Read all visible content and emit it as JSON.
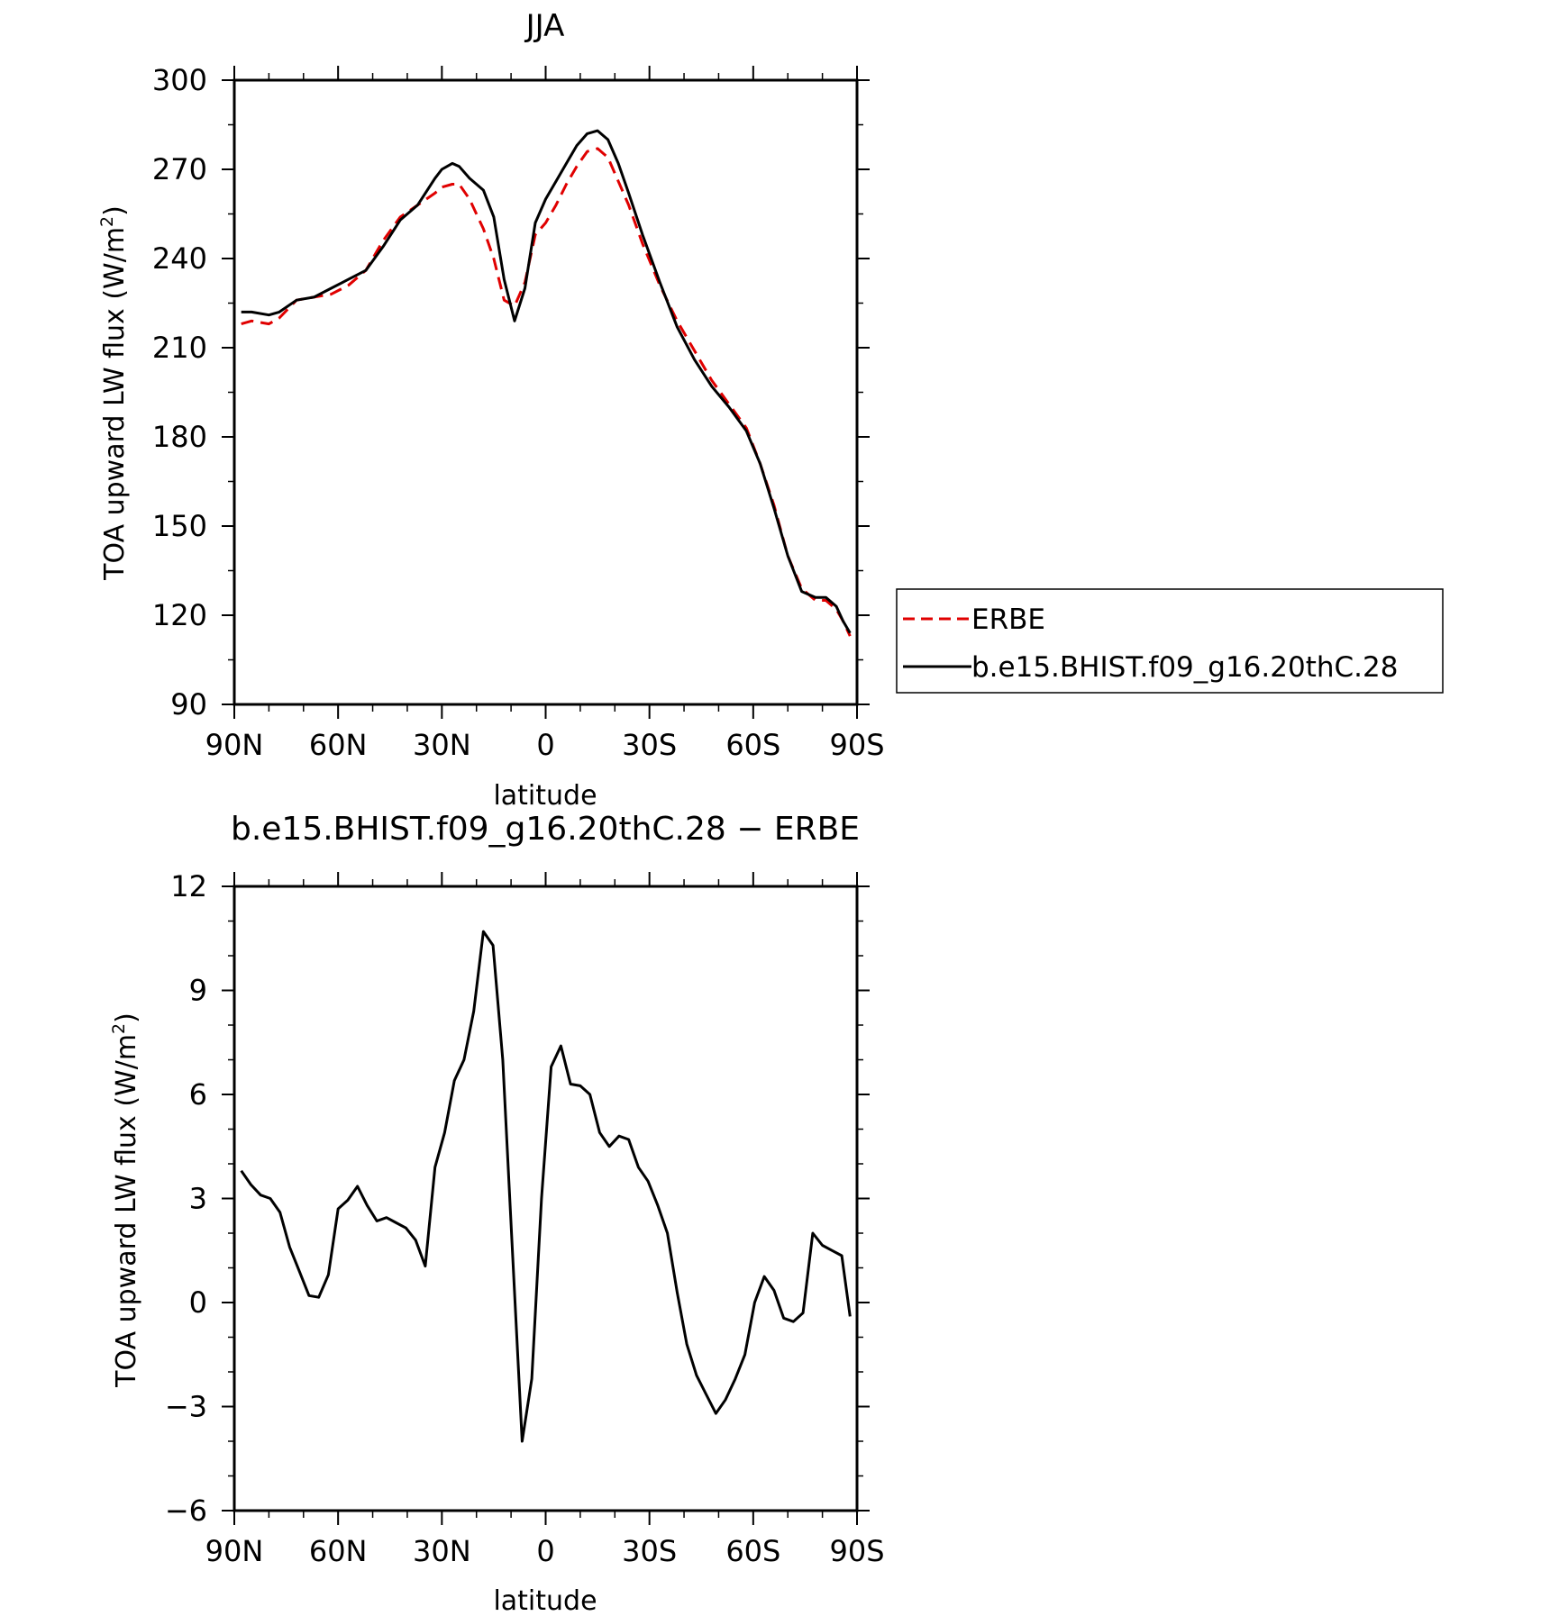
{
  "chart_data": [
    {
      "type": "line",
      "title": "JJA",
      "xlabel": "latitude",
      "ylabel_main": "TOA upward LW flux (W/m",
      "ylabel_sup": "2",
      "ylabel_close": ")",
      "xlim": [
        -90,
        90
      ],
      "ylim": [
        90,
        300
      ],
      "x_direction": "north-to-south",
      "x_ticks": [
        {
          "value": -90,
          "label": "90N"
        },
        {
          "value": -60,
          "label": "60N"
        },
        {
          "value": -30,
          "label": "30N"
        },
        {
          "value": 0,
          "label": "0"
        },
        {
          "value": 30,
          "label": "30S"
        },
        {
          "value": 60,
          "label": "60S"
        },
        {
          "value": 90,
          "label": "90S"
        }
      ],
      "y_ticks": [
        90,
        120,
        150,
        180,
        210,
        240,
        270,
        300
      ],
      "grid": false,
      "legend": {
        "placement": "right",
        "entries": [
          "ERBE",
          "b.e15.BHIST.f09_g16.20thC.28"
        ]
      },
      "series": [
        {
          "name": "ERBE",
          "color": "#e00000",
          "dash": "dashed",
          "x": [
            -88,
            -85,
            -80,
            -77,
            -72,
            -67,
            -62,
            -57,
            -52,
            -47,
            -42,
            -37,
            -32,
            -30,
            -27,
            -25,
            -22,
            -18,
            -15,
            -12,
            -9,
            -6,
            -3,
            0,
            3,
            6,
            9,
            12,
            15,
            18,
            21,
            24,
            28,
            33,
            38,
            43,
            48,
            53,
            58,
            62,
            66,
            70,
            74,
            78,
            81,
            84,
            86,
            88
          ],
          "y": [
            218,
            219,
            218,
            220,
            226,
            227,
            228,
            231,
            236,
            246,
            254,
            258,
            262,
            264,
            265,
            265,
            260,
            250,
            240,
            226,
            224,
            232,
            248,
            252,
            258,
            265,
            271,
            276,
            277,
            274,
            266,
            258,
            245,
            231,
            219,
            209,
            199,
            191,
            183,
            171,
            157,
            140,
            129,
            125,
            125,
            122,
            118,
            113
          ]
        },
        {
          "name": "b.e15.BHIST.f09_g16.20thC.28",
          "color": "#000000",
          "dash": "solid",
          "x": [
            -88,
            -85,
            -80,
            -77,
            -72,
            -67,
            -62,
            -57,
            -52,
            -47,
            -42,
            -37,
            -32,
            -30,
            -27,
            -25,
            -22,
            -18,
            -15,
            -12,
            -9,
            -6,
            -3,
            0,
            3,
            6,
            9,
            12,
            15,
            18,
            21,
            24,
            28,
            33,
            38,
            43,
            48,
            53,
            58,
            62,
            66,
            70,
            74,
            78,
            81,
            84,
            86,
            88
          ],
          "y": [
            222,
            222,
            221,
            222,
            226,
            227,
            230,
            233,
            236,
            244,
            253,
            258,
            267,
            270,
            272,
            271,
            267,
            263,
            254,
            233,
            219,
            230,
            252,
            260,
            266,
            272,
            278,
            282,
            283,
            280,
            272,
            262,
            248,
            232,
            217,
            206,
            197,
            190,
            182,
            171,
            156,
            140,
            128,
            126,
            126,
            123,
            118,
            114
          ]
        }
      ]
    },
    {
      "type": "line",
      "title": "b.e15.BHIST.f09_g16.20thC.28 − ERBE",
      "xlabel": "latitude",
      "ylabel_main": "TOA upward LW flux (W/m",
      "ylabel_sup": "2",
      "ylabel_close": ")",
      "xlim": [
        -90,
        90
      ],
      "ylim": [
        -6,
        12
      ],
      "x_direction": "north-to-south",
      "x_ticks": [
        {
          "value": -90,
          "label": "90N"
        },
        {
          "value": -60,
          "label": "60N"
        },
        {
          "value": -30,
          "label": "30N"
        },
        {
          "value": 0,
          "label": "0"
        },
        {
          "value": 30,
          "label": "30S"
        },
        {
          "value": 60,
          "label": "60S"
        },
        {
          "value": 90,
          "label": "90S"
        }
      ],
      "y_ticks": [
        {
          "value": -6,
          "label": "−6"
        },
        {
          "value": -3,
          "label": "−3"
        },
        {
          "value": 0,
          "label": "0"
        },
        {
          "value": 3,
          "label": "3"
        },
        {
          "value": 6,
          "label": "6"
        },
        {
          "value": 9,
          "label": "9"
        },
        {
          "value": 12,
          "label": "12"
        }
      ],
      "grid": false,
      "series": [
        {
          "color": "#000000",
          "dash": "solid",
          "x": [
            -88,
            -85.2,
            -82.4,
            -79.6,
            -76.8,
            -74,
            -71.2,
            -68.4,
            -65.6,
            -62.8,
            -60,
            -57.2,
            -54.4,
            -51.6,
            -48.8,
            -46,
            -43.2,
            -40.4,
            -37.6,
            -34.8,
            -32,
            -29.2,
            -26.4,
            -23.6,
            -20.8,
            -18,
            -15.2,
            -12.4,
            -9.6,
            -6.8,
            -4,
            -1.2,
            1.6,
            4.4,
            7.2,
            10,
            12.8,
            15.6,
            18.4,
            21.2,
            24,
            26.8,
            29.6,
            32.4,
            35.2,
            38,
            40.8,
            43.6,
            46.4,
            49.2,
            52,
            54.8,
            57.6,
            60.4,
            63.2,
            66,
            68.8,
            71.6,
            74.4,
            77.2,
            80,
            82.8,
            85.6,
            88
          ],
          "y": [
            3.8,
            3.4,
            3.1,
            3.0,
            2.6,
            1.6,
            0.9,
            0.2,
            0.15,
            0.8,
            2.7,
            2.95,
            3.35,
            2.8,
            2.35,
            2.45,
            2.3,
            2.15,
            1.8,
            1.05,
            3.9,
            4.9,
            6.4,
            7.0,
            8.4,
            10.7,
            10.3,
            7.0,
            1.5,
            -4.0,
            -2.2,
            3.0,
            6.8,
            7.4,
            6.3,
            6.25,
            6.0,
            4.9,
            4.5,
            4.8,
            4.7,
            3.9,
            3.5,
            2.8,
            2.0,
            0.3,
            -1.2,
            -2.1,
            -2.65,
            -3.2,
            -2.8,
            -2.2,
            -1.5,
            0.0,
            0.75,
            0.35,
            -0.45,
            -0.55,
            -0.3,
            2.0,
            1.65,
            1.5,
            1.35,
            -0.4
          ]
        }
      ]
    }
  ]
}
